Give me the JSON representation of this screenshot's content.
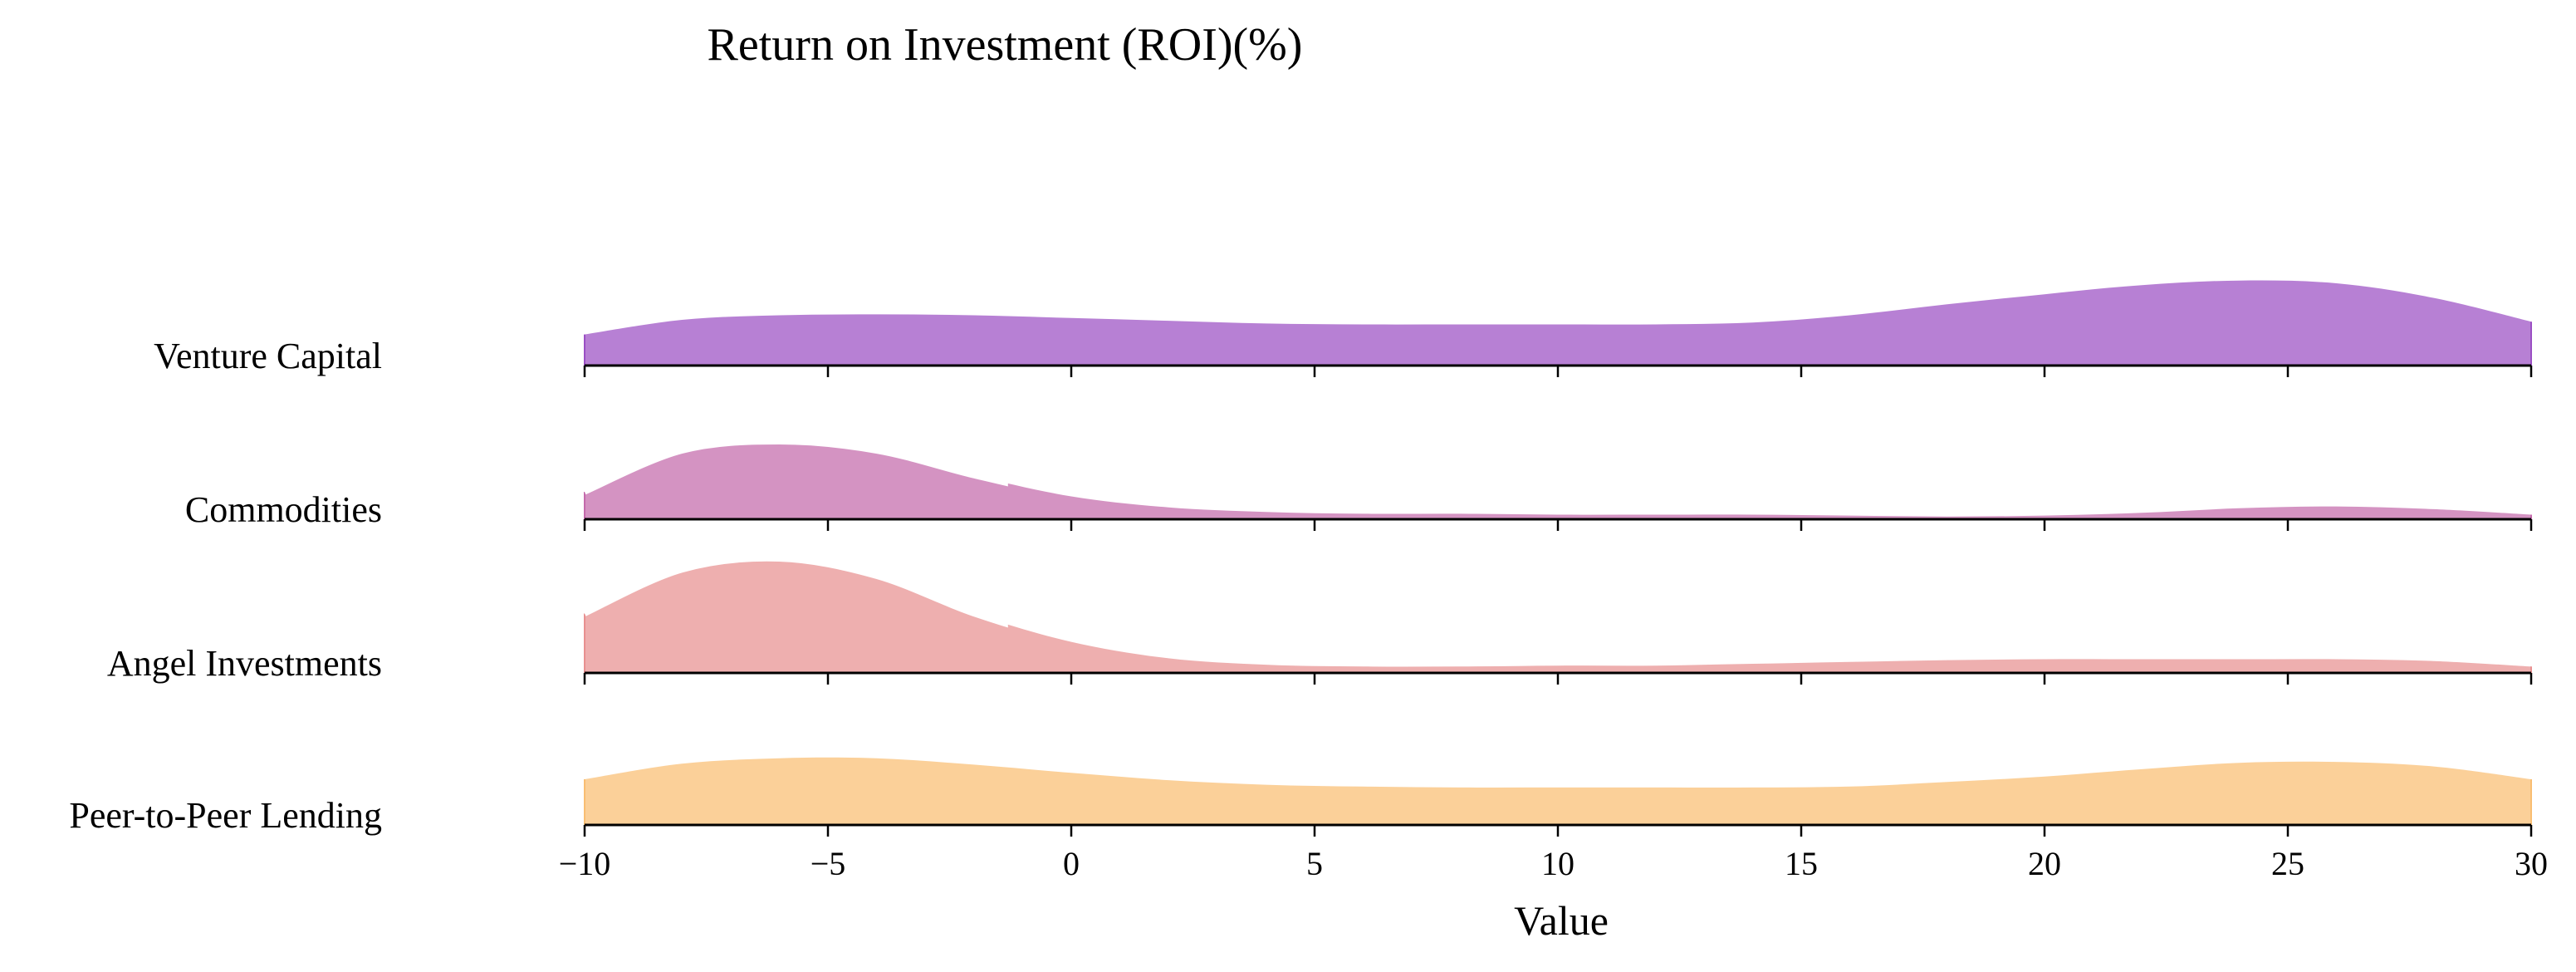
{
  "chart_data": {
    "type": "area",
    "title": "Return on Investment (ROI)(%)",
    "xlabel": "Value",
    "xlim": [
      -10,
      30
    ],
    "xticks": [
      -10,
      -5,
      0,
      5,
      10,
      15,
      20,
      25,
      30
    ],
    "xtick_labels": [
      "−10",
      "−5",
      "0",
      "5",
      "10",
      "15",
      "20",
      "25",
      "30"
    ],
    "grid": false,
    "x": [
      -10,
      -8,
      -6,
      -4,
      -2,
      0,
      2,
      4,
      6,
      8,
      10,
      12,
      14,
      16,
      18,
      20,
      22,
      24,
      26,
      28,
      30
    ],
    "series": [
      {
        "name": "Venture Capital",
        "color": "#9b4fc4",
        "values": [
          0.34,
          0.5,
          0.55,
          0.56,
          0.55,
          0.52,
          0.49,
          0.46,
          0.45,
          0.45,
          0.45,
          0.45,
          0.47,
          0.55,
          0.67,
          0.78,
          0.88,
          0.93,
          0.9,
          0.74,
          0.48
        ]
      },
      {
        "name": "Commodities",
        "color": "#c469ab",
        "values": [
          0.3,
          0.75,
          0.85,
          0.75,
          0.48,
          0.25,
          0.13,
          0.08,
          0.06,
          0.06,
          0.05,
          0.05,
          0.05,
          0.04,
          0.03,
          0.04,
          0.07,
          0.12,
          0.14,
          0.11,
          0.05
        ]
      },
      {
        "name": "Angel Investments",
        "color": "#e89090",
        "values": [
          0.65,
          1.13,
          1.25,
          1.06,
          0.65,
          0.34,
          0.16,
          0.09,
          0.07,
          0.07,
          0.08,
          0.08,
          0.1,
          0.12,
          0.14,
          0.15,
          0.15,
          0.15,
          0.15,
          0.13,
          0.07
        ]
      },
      {
        "name": "Peer-to-Peer Lending",
        "color": "#f9be72",
        "values": [
          0.5,
          0.67,
          0.73,
          0.73,
          0.66,
          0.57,
          0.49,
          0.44,
          0.42,
          0.41,
          0.41,
          0.41,
          0.41,
          0.42,
          0.47,
          0.53,
          0.61,
          0.68,
          0.69,
          0.64,
          0.5
        ]
      }
    ],
    "highlighted_series": [
      "Commodities",
      "Angel Investments"
    ],
    "highlight_outline_color": "#ffffff"
  }
}
